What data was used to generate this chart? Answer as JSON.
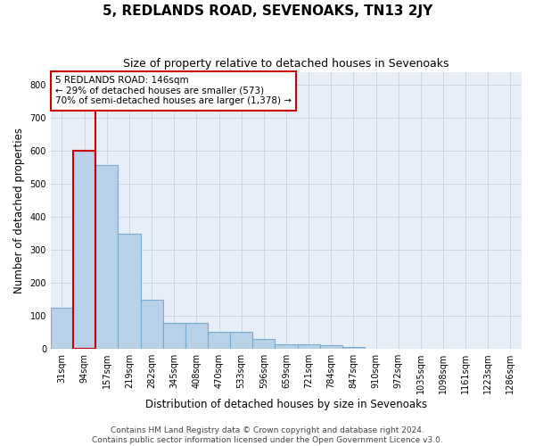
{
  "title": "5, REDLANDS ROAD, SEVENOAKS, TN13 2JY",
  "subtitle": "Size of property relative to detached houses in Sevenoaks",
  "xlabel": "Distribution of detached houses by size in Sevenoaks",
  "ylabel": "Number of detached properties",
  "categories": [
    "31sqm",
    "94sqm",
    "157sqm",
    "219sqm",
    "282sqm",
    "345sqm",
    "408sqm",
    "470sqm",
    "533sqm",
    "596sqm",
    "659sqm",
    "721sqm",
    "784sqm",
    "847sqm",
    "910sqm",
    "972sqm",
    "1035sqm",
    "1098sqm",
    "1161sqm",
    "1223sqm",
    "1286sqm"
  ],
  "values": [
    125,
    600,
    557,
    348,
    148,
    78,
    78,
    52,
    52,
    30,
    15,
    14,
    12,
    5,
    0,
    0,
    0,
    0,
    0,
    0,
    0
  ],
  "bar_color": "#b8d0e8",
  "bar_edge_color": "#7aaad0",
  "highlight_bar_index": 1,
  "highlight_bar_edge_color": "#cc0000",
  "annotation_box_text": "5 REDLANDS ROAD: 146sqm\n← 29% of detached houses are smaller (573)\n70% of semi-detached houses are larger (1,378) →",
  "vline_x": 1.5,
  "ylim": [
    0,
    840
  ],
  "yticks": [
    0,
    100,
    200,
    300,
    400,
    500,
    600,
    700,
    800
  ],
  "grid_color": "#c8d4e8",
  "background_color": "#e8eef8",
  "footer_text": "Contains HM Land Registry data © Crown copyright and database right 2024.\nContains public sector information licensed under the Open Government Licence v3.0.",
  "title_fontsize": 11,
  "subtitle_fontsize": 9,
  "axis_label_fontsize": 8.5,
  "tick_fontsize": 7,
  "annotation_fontsize": 7.5,
  "footer_fontsize": 6.5
}
